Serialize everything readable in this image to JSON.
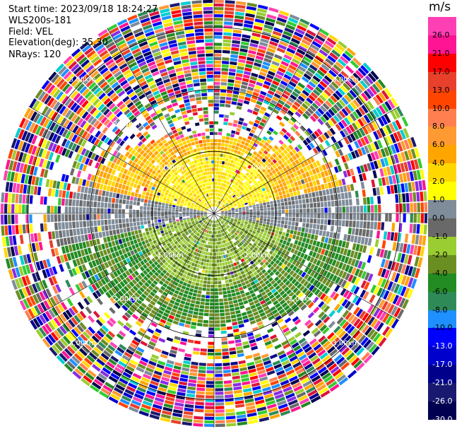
{
  "header": {
    "start_time": "Start time: 2023/09/18 18:24:27",
    "instrument": "WLS200s-181",
    "field": "Field: VEL",
    "elevation": "Elevation(deg): 35.30",
    "nrays": "NRays: 120"
  },
  "colorbar": {
    "unit": "m/s",
    "ticks": [
      "26.0",
      "21.0",
      "17.0",
      "13.0",
      "10.0",
      "8.0",
      "6.0",
      "4.0",
      "2.0",
      "1.0",
      "0.0",
      "-1.0",
      "-2.0",
      "-4.0",
      "-6.0",
      "-8.0",
      "-10.0",
      "-13.0",
      "-17.0",
      "-21.0",
      "-26.0",
      "-30.0"
    ],
    "colors": [
      "#ff3fb4",
      "#ff1493",
      "#ff0000",
      "#e8402a",
      "#ff4500",
      "#ff7f50",
      "#ff9a33",
      "#ffa500",
      "#ffd700",
      "#ffff00",
      "#7f8c9a",
      "#696969",
      "#9acd32",
      "#6b8e23",
      "#228b22",
      "#2e8b57",
      "#1e90ff",
      "#0000ff",
      "#0000cd",
      "#00008b",
      "#191970",
      "#000050"
    ]
  },
  "chart_data": {
    "type": "ppi-velocity",
    "field": "VEL",
    "units": "m/s",
    "elevation_deg": 35.3,
    "nrays": 120,
    "range_rings_km": [
      1.0,
      2.0,
      3.0
    ],
    "ring_labels": [
      "1.00km",
      "2.00km",
      "3.00km"
    ],
    "color_levels": [
      -30.0,
      -26.0,
      -21.0,
      -17.0,
      -13.0,
      -10.0,
      -8.0,
      -6.0,
      -4.0,
      -2.0,
      -1.0,
      0.0,
      1.0,
      2.0,
      4.0,
      6.0,
      8.0,
      10.0,
      13.0,
      17.0,
      21.0,
      26.0
    ],
    "valid_range_km": {
      "north_sector": 1.2,
      "west_east": 2.8,
      "south": 1.8
    },
    "pattern": "Positive (yellow/orange) velocities to the north, negative (green) velocities to the south, near-zero (grey) along the east-west axis; noisy multicolor returns beyond ~2.5 km."
  }
}
